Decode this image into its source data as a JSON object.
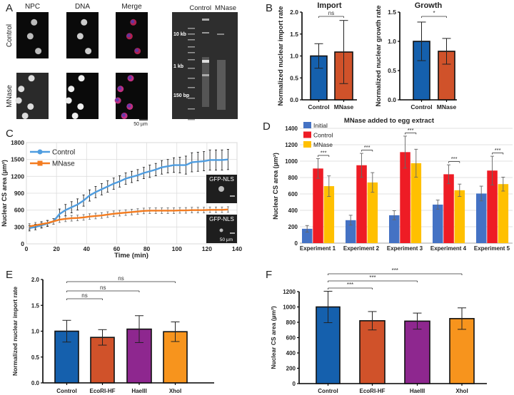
{
  "figure": {
    "panel_labels": [
      "A",
      "B",
      "C",
      "D",
      "E",
      "F"
    ]
  },
  "panel_a": {
    "columns": [
      "NPC",
      "DNA",
      "Merge"
    ],
    "rows": [
      "Control",
      "MNase"
    ],
    "scale_bar": "50 µm",
    "gel_lanes": [
      "Control",
      "MNase"
    ],
    "gel_markers": [
      "10 kb",
      "1 kb",
      "150 bp"
    ]
  },
  "panel_c_insets": {
    "label": "GFP-NLS",
    "scale_bar": "50 µm"
  },
  "colors": {
    "control_blue": "#1560ad",
    "mnase_orange": "#d0522a",
    "haeiii_purple": "#8e278f",
    "xhoi_orange": "#f7941d",
    "line_control": "#4f9de0",
    "line_mnase": "#f47c20",
    "d_initial": "#4472c4",
    "d_control": "#ee1c25",
    "d_mnase": "#ffc000"
  },
  "chart_data": [
    {
      "type": "bar",
      "panel": "B",
      "title": "Import",
      "xlabel": "",
      "ylabel": "Normalized nuclear import rate",
      "categories": [
        "Control",
        "MNase"
      ],
      "values": [
        1.0,
        1.09
      ],
      "errors": [
        0.28,
        0.72
      ],
      "colors": [
        "#1560ad",
        "#d0522a"
      ],
      "ylim": [
        0,
        2.0
      ],
      "yticks": [
        0,
        0.5,
        1.0,
        1.5,
        2.0
      ],
      "ytick_labels": [
        "0.0",
        "0.5",
        "1.0",
        "1.5",
        "2.0"
      ],
      "significance": [
        {
          "pair": [
            0,
            1
          ],
          "label": "ns"
        }
      ]
    },
    {
      "type": "bar",
      "panel": "B",
      "title": "Growth",
      "xlabel": "",
      "ylabel": "Normalized nuclear growth rate",
      "categories": [
        "Control",
        "MNase"
      ],
      "values": [
        1.0,
        0.83
      ],
      "errors": [
        0.33,
        0.22
      ],
      "colors": [
        "#1560ad",
        "#d0522a"
      ],
      "ylim": [
        0,
        1.5
      ],
      "yticks": [
        0,
        0.5,
        1.0,
        1.5
      ],
      "ytick_labels": [
        "0.0",
        "0.5",
        "1.0",
        "1.5"
      ],
      "significance": [
        {
          "pair": [
            0,
            1
          ],
          "label": "*"
        }
      ]
    },
    {
      "type": "line",
      "panel": "C",
      "xlabel": "Time (min)",
      "ylabel": "Nuclear CS area (µm²)",
      "xlim": [
        0,
        140
      ],
      "ylim": [
        0,
        1800
      ],
      "grid": true,
      "legend": "top-left",
      "xticks": [
        0,
        20,
        40,
        60,
        80,
        100,
        120,
        140
      ],
      "xtick_labels": [
        "0",
        "20",
        "40",
        "60",
        "80",
        "100",
        "120",
        "140"
      ],
      "yticks": [
        0,
        300,
        600,
        900,
        1200,
        1500,
        1800
      ],
      "ytick_labels": [
        "0",
        "300",
        "600",
        "900",
        "1200",
        "1500",
        "1800"
      ],
      "x": [
        2,
        6,
        10,
        14,
        18,
        22,
        26,
        30,
        34,
        38,
        42,
        46,
        50,
        54,
        58,
        62,
        66,
        70,
        74,
        78,
        82,
        86,
        90,
        94,
        98,
        102,
        106,
        110,
        114,
        118,
        122,
        126,
        130,
        134
      ],
      "series": [
        {
          "name": "Control",
          "color": "#4f9de0",
          "marker": "circle",
          "y": [
            280,
            300,
            330,
            360,
            400,
            530,
            600,
            650,
            700,
            770,
            860,
            920,
            970,
            1020,
            1070,
            1110,
            1160,
            1190,
            1220,
            1260,
            1290,
            1320,
            1360,
            1380,
            1400,
            1400,
            1400,
            1450,
            1460,
            1470,
            1490,
            1490,
            1490,
            1500
          ],
          "err": [
            50,
            50,
            50,
            50,
            50,
            90,
            100,
            100,
            100,
            100,
            100,
            100,
            100,
            100,
            100,
            100,
            100,
            100,
            100,
            100,
            110,
            110,
            120,
            120,
            130,
            140,
            160,
            170,
            170,
            170,
            180,
            180,
            180,
            180
          ]
        },
        {
          "name": "MNase",
          "color": "#f47c20",
          "marker": "square",
          "y": [
            310,
            330,
            350,
            370,
            400,
            430,
            445,
            455,
            460,
            470,
            485,
            495,
            505,
            520,
            535,
            545,
            555,
            565,
            575,
            585,
            590,
            590,
            590,
            590,
            590,
            595,
            595,
            600,
            600,
            600,
            605,
            605,
            605,
            610
          ],
          "err": [
            50,
            50,
            50,
            50,
            50,
            50,
            50,
            50,
            50,
            50,
            50,
            50,
            50,
            50,
            50,
            50,
            50,
            50,
            50,
            50,
            50,
            50,
            50,
            50,
            50,
            50,
            50,
            50,
            50,
            50,
            50,
            50,
            50,
            50
          ]
        }
      ]
    },
    {
      "type": "bar",
      "panel": "D",
      "title": "MNase added to egg extract",
      "xlabel": "",
      "ylabel": "Nuclear CS area (µm²)",
      "categories": [
        "Experiment 1",
        "Experiment 2",
        "Experiment 3",
        "Experiment 4",
        "Experiment 5"
      ],
      "ylim": [
        0,
        1400
      ],
      "grid": true,
      "legend": "top-left",
      "yticks": [
        0,
        200,
        400,
        600,
        800,
        1000,
        1200,
        1400
      ],
      "ytick_labels": [
        "0",
        "200",
        "400",
        "600",
        "800",
        "1000",
        "1200",
        "1400"
      ],
      "series": [
        {
          "name": "Initial",
          "color": "#4472c4",
          "values": [
            175,
            280,
            340,
            470,
            605
          ],
          "errors": [
            40,
            60,
            55,
            55,
            90
          ]
        },
        {
          "name": "Control",
          "color": "#ee1c25",
          "values": [
            910,
            950,
            1110,
            840,
            885
          ],
          "errors": [
            120,
            145,
            195,
            115,
            175
          ]
        },
        {
          "name": "MNase",
          "color": "#ffc000",
          "values": [
            695,
            740,
            975,
            645,
            720
          ],
          "errors": [
            125,
            120,
            170,
            75,
            85
          ]
        }
      ],
      "significance": [
        "***",
        "***",
        "***",
        "***",
        "***"
      ]
    },
    {
      "type": "bar",
      "panel": "E",
      "xlabel": "",
      "ylabel": "Normalized nuclear import rate",
      "categories": [
        "Control",
        "EcoRI-HF",
        "HaeIII",
        "XhoI"
      ],
      "values": [
        1.0,
        0.88,
        1.04,
        0.99
      ],
      "errors": [
        0.21,
        0.15,
        0.26,
        0.19
      ],
      "colors": [
        "#1560ad",
        "#d0522a",
        "#8e278f",
        "#f7941d"
      ],
      "ylim": [
        0,
        2.0
      ],
      "yticks": [
        0,
        0.5,
        1.0,
        1.5,
        2.0
      ],
      "ytick_labels": [
        "0.0",
        "0.5",
        "1.0",
        "1.5",
        "2.0"
      ],
      "significance": [
        {
          "pair": [
            0,
            1
          ],
          "label": "ns"
        },
        {
          "pair": [
            0,
            2
          ],
          "label": "ns"
        },
        {
          "pair": [
            0,
            3
          ],
          "label": "ns"
        }
      ]
    },
    {
      "type": "bar",
      "panel": "F",
      "xlabel": "",
      "ylabel": "Nuclear CS area (µm²)",
      "categories": [
        "Control",
        "EcoRI-HF",
        "HaeIII",
        "XhoI"
      ],
      "values": [
        1000,
        820,
        815,
        848
      ],
      "errors": [
        205,
        120,
        105,
        140
      ],
      "colors": [
        "#1560ad",
        "#d0522a",
        "#8e278f",
        "#f7941d"
      ],
      "ylim": [
        0,
        1200
      ],
      "yticks": [
        0,
        200,
        400,
        600,
        800,
        1000,
        1200
      ],
      "ytick_labels": [
        "0",
        "200",
        "400",
        "600",
        "800",
        "1000",
        "1200"
      ],
      "significance": [
        {
          "pair": [
            0,
            1
          ],
          "label": "***"
        },
        {
          "pair": [
            0,
            2
          ],
          "label": "***"
        },
        {
          "pair": [
            0,
            3
          ],
          "label": "***"
        }
      ]
    }
  ]
}
